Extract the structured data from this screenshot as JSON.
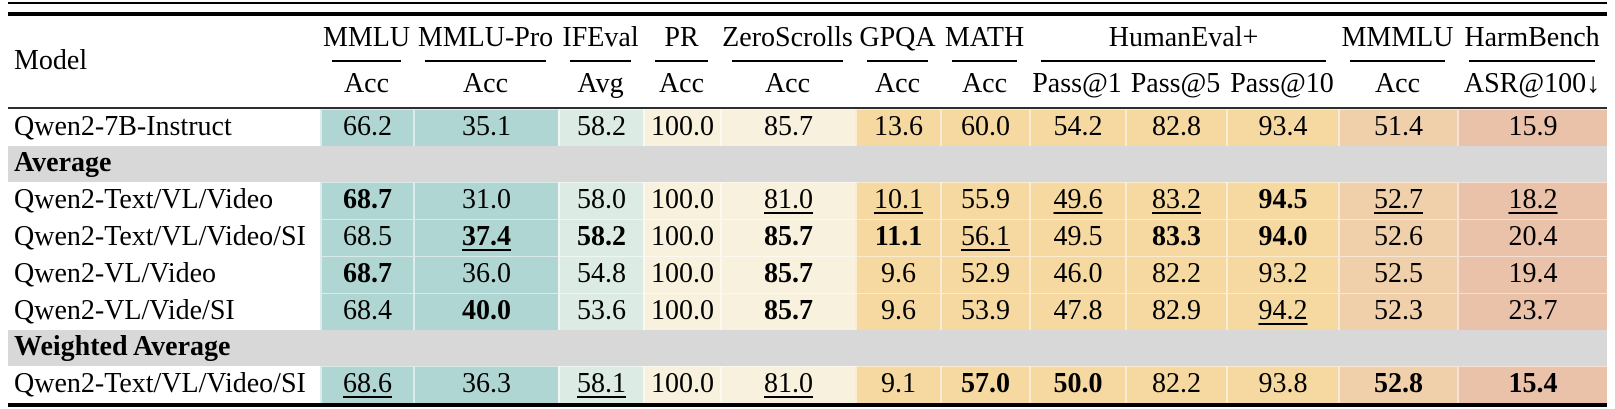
{
  "colors": {
    "teal": "#b0d6d3",
    "light_teal": "#dcece5",
    "cream": "#f8f1de",
    "wheat": "#f6d9a0",
    "peach": "#f0cfab",
    "salmon": "#eac1a9",
    "section_band": "#d8d8d8",
    "model_col": "#ffffff"
  },
  "table": {
    "model_header": "Model",
    "groups": [
      {
        "name": "MMLU",
        "subs": [
          "Acc"
        ],
        "color_key": "teal"
      },
      {
        "name": "MMLU-Pro",
        "subs": [
          "Acc"
        ],
        "color_key": "teal"
      },
      {
        "name": "IFEval",
        "subs": [
          "Avg"
        ],
        "color_key": "light_teal"
      },
      {
        "name": "PR",
        "subs": [
          "Acc"
        ],
        "color_key": "cream"
      },
      {
        "name": "ZeroScrolls",
        "subs": [
          "Acc"
        ],
        "color_key": "cream"
      },
      {
        "name": "GPQA",
        "subs": [
          "Acc"
        ],
        "color_key": "wheat"
      },
      {
        "name": "MATH",
        "subs": [
          "Acc"
        ],
        "color_key": "wheat"
      },
      {
        "name": "HumanEval+",
        "subs": [
          "Pass@1",
          "Pass@5",
          "Pass@10"
        ],
        "color_key": "wheat"
      },
      {
        "name": "MMMLU",
        "subs": [
          "Acc"
        ],
        "color_key": "peach"
      },
      {
        "name": "HarmBench",
        "subs": [
          "ASR@100↓"
        ],
        "color_key": "salmon"
      }
    ],
    "rows": [
      {
        "type": "data",
        "model": "Qwen2-7B-Instruct",
        "values": [
          "66.2",
          "35.1",
          "58.2",
          "100.0",
          "85.7",
          "13.6",
          "60.0",
          "54.2",
          "82.8",
          "93.4",
          "51.4",
          "15.9"
        ],
        "styles": [
          "",
          "",
          "",
          "",
          "",
          "",
          "",
          "",
          "",
          "",
          "",
          ""
        ]
      },
      {
        "type": "section",
        "label": "Average"
      },
      {
        "type": "data",
        "model": "Qwen2-Text/VL/Video",
        "values": [
          "68.7",
          "31.0",
          "58.0",
          "100.0",
          "81.0",
          "10.1",
          "55.9",
          "49.6",
          "83.2",
          "94.5",
          "52.7",
          "18.2"
        ],
        "styles": [
          "b",
          "",
          "",
          "",
          "u",
          "u",
          "",
          "u",
          "u",
          "b",
          "u",
          "u"
        ]
      },
      {
        "type": "data",
        "model": "Qwen2-Text/VL/Video/SI",
        "values": [
          "68.5",
          "37.4",
          "58.2",
          "100.0",
          "85.7",
          "11.1",
          "56.1",
          "49.5",
          "83.3",
          "94.0",
          "52.6",
          "20.4"
        ],
        "styles": [
          "",
          "bu",
          "b",
          "",
          "b",
          "b",
          "u",
          "",
          "b",
          "b",
          "",
          ""
        ]
      },
      {
        "type": "data",
        "model": "Qwen2-VL/Video",
        "values": [
          "68.7",
          "36.0",
          "54.8",
          "100.0",
          "85.7",
          "9.6",
          "52.9",
          "46.0",
          "82.2",
          "93.2",
          "52.5",
          "19.4"
        ],
        "styles": [
          "b",
          "",
          "",
          "",
          "b",
          "",
          "",
          "",
          "",
          "",
          "",
          ""
        ]
      },
      {
        "type": "data",
        "model": "Qwen2-VL/Vide/SI",
        "values": [
          "68.4",
          "40.0",
          "53.6",
          "100.0",
          "85.7",
          "9.6",
          "53.9",
          "47.8",
          "82.9",
          "94.2",
          "52.3",
          "23.7"
        ],
        "styles": [
          "",
          "b",
          "",
          "",
          "b",
          "",
          "",
          "",
          "",
          "u",
          "",
          ""
        ]
      },
      {
        "type": "section",
        "label": "Weighted Average"
      },
      {
        "type": "data",
        "model": "Qwen2-Text/VL/Video/SI",
        "values": [
          "68.6",
          "36.3",
          "58.1",
          "100.0",
          "81.0",
          "9.1",
          "57.0",
          "50.0",
          "82.2",
          "93.8",
          "52.8",
          "15.4"
        ],
        "styles": [
          "u",
          "",
          "u",
          "",
          "u",
          "",
          "b",
          "b",
          "",
          "",
          "b",
          "b"
        ]
      }
    ]
  },
  "chart_data": {
    "type": "table",
    "columns": [
      "Model",
      "MMLU Acc",
      "MMLU-Pro Acc",
      "IFEval Avg",
      "PR Acc",
      "ZeroScrolls Acc",
      "GPQA Acc",
      "MATH Acc",
      "HumanEval+ Pass@1",
      "HumanEval+ Pass@5",
      "HumanEval+ Pass@10",
      "MMMLU Acc",
      "HarmBench ASR@100↓"
    ],
    "rows": [
      {
        "section": "",
        "model": "Qwen2-7B-Instruct",
        "values": [
          66.2,
          35.1,
          58.2,
          100.0,
          85.7,
          13.6,
          60.0,
          54.2,
          82.8,
          93.4,
          51.4,
          15.9
        ]
      },
      {
        "section": "Average",
        "model": "Qwen2-Text/VL/Video",
        "values": [
          68.7,
          31.0,
          58.0,
          100.0,
          81.0,
          10.1,
          55.9,
          49.6,
          83.2,
          94.5,
          52.7,
          18.2
        ]
      },
      {
        "section": "Average",
        "model": "Qwen2-Text/VL/Video/SI",
        "values": [
          68.5,
          37.4,
          58.2,
          100.0,
          85.7,
          11.1,
          56.1,
          49.5,
          83.3,
          94.0,
          52.6,
          20.4
        ]
      },
      {
        "section": "Average",
        "model": "Qwen2-VL/Video",
        "values": [
          68.7,
          36.0,
          54.8,
          100.0,
          85.7,
          9.6,
          52.9,
          46.0,
          82.2,
          93.2,
          52.5,
          19.4
        ]
      },
      {
        "section": "Average",
        "model": "Qwen2-VL/Vide/SI",
        "values": [
          68.4,
          40.0,
          53.6,
          100.0,
          85.7,
          9.6,
          53.9,
          47.8,
          82.9,
          94.2,
          52.3,
          23.7
        ]
      },
      {
        "section": "Weighted Average",
        "model": "Qwen2-Text/VL/Video/SI",
        "values": [
          68.6,
          36.3,
          58.1,
          100.0,
          81.0,
          9.1,
          57.0,
          50.0,
          82.2,
          93.8,
          52.8,
          15.4
        ]
      }
    ]
  }
}
